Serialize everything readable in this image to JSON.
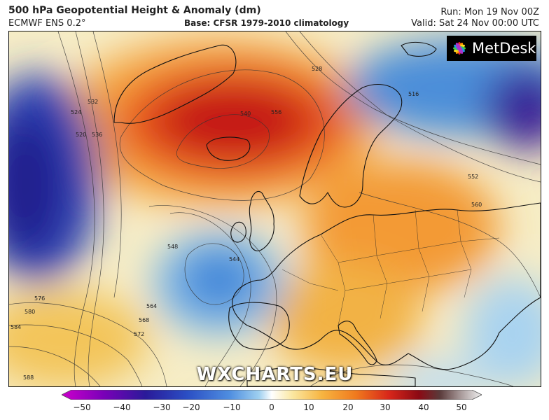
{
  "header": {
    "title": "500 hPa Geopotential Height & Anomaly (dm)",
    "model": "ECMWF ENS 0.2°",
    "base": "Base: CFSR 1979-2010 climatology",
    "run": "Run: Mon 19 Nov 00Z",
    "valid": "Valid: Sat 24 Nov 00:00 UTC"
  },
  "logo": {
    "text": "MetDesk",
    "icon": "metdesk-flower-icon"
  },
  "watermark": "WXCHARTS.EU",
  "contour_labels": [
    "520",
    "524",
    "528",
    "532",
    "536",
    "540",
    "544",
    "548",
    "552",
    "556",
    "560",
    "564",
    "568",
    "572",
    "576",
    "580",
    "584",
    "588",
    "516"
  ],
  "colorbar": {
    "ticks": [
      "−50",
      "−40",
      "−30",
      "−20",
      "−10",
      "0",
      "10",
      "20",
      "30",
      "40",
      "50"
    ],
    "colors": [
      "#cc00cc",
      "#7a00b8",
      "#2a1a99",
      "#2b4fc4",
      "#4f8ee0",
      "#9fd0f0",
      "#ffffff",
      "#fbe7a0",
      "#f7b440",
      "#f07a1e",
      "#d7261a",
      "#8b0a14",
      "#5a3a3a",
      "#a89a9a",
      "#f0f0f0"
    ]
  }
}
